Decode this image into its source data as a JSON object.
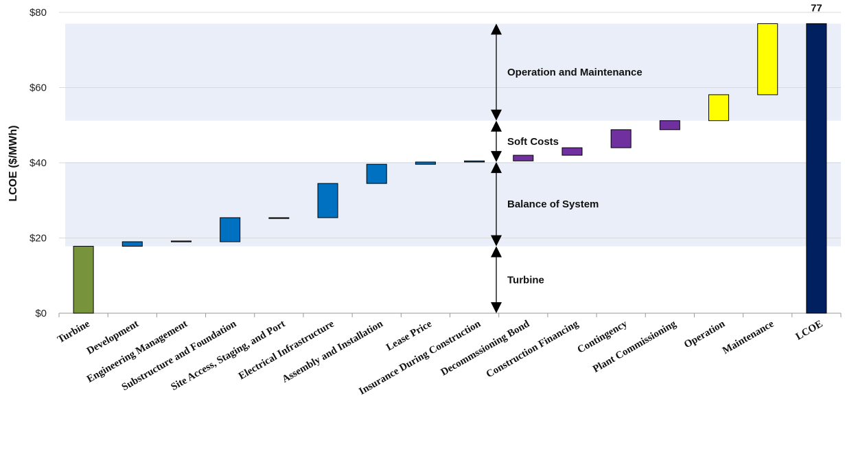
{
  "chart_data": {
    "type": "bar",
    "subtype": "waterfall",
    "ylabel": "LCOE ($/MWh)",
    "ylim": [
      0,
      80
    ],
    "yticks": [
      0,
      20,
      40,
      60,
      80
    ],
    "ytick_labels": [
      "$0",
      "$20",
      "$40",
      "$60",
      "$80"
    ],
    "grid": true,
    "categories": [
      "Turbine",
      "Development",
      "Engineering Management",
      "Substructure and Foundation",
      "Site Access, Staging, and Port",
      "Electrical Infrastructure",
      "Assembly and Installation",
      "Lease Price",
      "Insurance During Construction",
      "Decommssioning Bond",
      "Construction Financing",
      "Contingency",
      "Plant Commissioning",
      "Operation",
      "Maintenance",
      "LCOE"
    ],
    "bars": [
      {
        "start": 0,
        "end": 17.8,
        "color": "#77933c"
      },
      {
        "start": 17.8,
        "end": 19.0,
        "color": "#0070c0"
      },
      {
        "start": 19.0,
        "end": 19.2,
        "color": "#0070c0"
      },
      {
        "start": 19.0,
        "end": 25.4,
        "color": "#0070c0"
      },
      {
        "start": 25.4,
        "end": 25.4,
        "color": "#0070c0"
      },
      {
        "start": 25.4,
        "end": 34.5,
        "color": "#0070c0"
      },
      {
        "start": 34.5,
        "end": 39.6,
        "color": "#0070c0"
      },
      {
        "start": 39.6,
        "end": 40.2,
        "color": "#0070c0"
      },
      {
        "start": 40.2,
        "end": 40.5,
        "color": "#0070c0"
      },
      {
        "start": 40.5,
        "end": 42.0,
        "color": "#7030a0"
      },
      {
        "start": 42.0,
        "end": 44.0,
        "color": "#7030a0"
      },
      {
        "start": 44.0,
        "end": 48.8,
        "color": "#7030a0"
      },
      {
        "start": 48.8,
        "end": 51.2,
        "color": "#7030a0"
      },
      {
        "start": 51.2,
        "end": 58.1,
        "color": "#ffff00"
      },
      {
        "start": 58.1,
        "end": 77.0,
        "color": "#ffff00"
      },
      {
        "start": 0,
        "end": 77.0,
        "color": "#002060"
      }
    ],
    "total_label": "77",
    "bands": [
      {
        "start": 17.8,
        "end": 40.2
      },
      {
        "start": 51.2,
        "end": 77.0
      }
    ],
    "segments": [
      {
        "label": "Turbine",
        "start": 0,
        "end": 17.8
      },
      {
        "label": "Balance of System",
        "start": 17.8,
        "end": 40.2
      },
      {
        "label": "Soft Costs",
        "start": 40.2,
        "end": 51.2
      },
      {
        "label": "Operation and Maintenance",
        "start": 51.2,
        "end": 77.0
      }
    ]
  }
}
